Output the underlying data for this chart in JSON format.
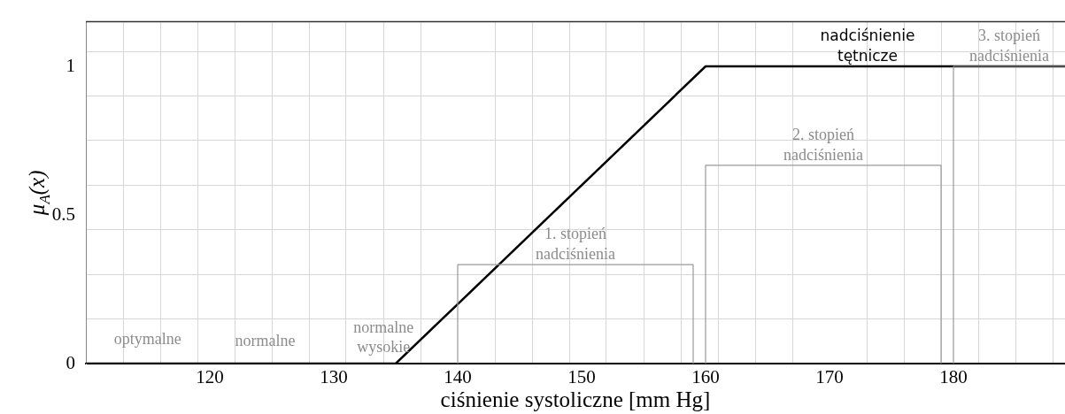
{
  "chart_data": {
    "type": "line",
    "xlabel": "ciśnienie systoliczne [mm Hg]",
    "ylabel": "μ$_{A}$(x)",
    "xlim": [
      110,
      189
    ],
    "ylim": [
      0,
      1.15
    ],
    "xticks": [
      {
        "value": 110,
        "label": null
      },
      {
        "value": 113,
        "label": null
      },
      {
        "value": 116,
        "label": null
      },
      {
        "value": 119,
        "label": null
      },
      120,
      {
        "value": 122,
        "label": null
      },
      {
        "value": 125,
        "label": null
      },
      {
        "value": 128,
        "label": null
      },
      130,
      {
        "value": 131,
        "label": null
      },
      {
        "value": 134,
        "label": null
      },
      {
        "value": 137,
        "label": null
      },
      140,
      {
        "value": 143,
        "label": null
      },
      {
        "value": 146,
        "label": null
      },
      {
        "value": 149,
        "label": null
      },
      150,
      {
        "value": 152,
        "label": null
      },
      {
        "value": 155,
        "label": null
      },
      {
        "value": 158,
        "label": null
      },
      160,
      {
        "value": 161,
        "label": null
      },
      {
        "value": 164,
        "label": null
      },
      {
        "value": 167,
        "label": null
      },
      170,
      {
        "value": 173,
        "label": null
      },
      {
        "value": 176,
        "label": null
      },
      {
        "value": 179,
        "label": null
      },
      180,
      {
        "value": 182,
        "label": null
      },
      {
        "value": 185,
        "label": null
      },
      {
        "value": 188,
        "label": null
      }
    ],
    "yticks": [
      0,
      {
        "value": 0.15,
        "label": null
      },
      {
        "value": 0.3,
        "label": null
      },
      {
        "value": 0.45,
        "label": null
      },
      0.5,
      {
        "value": 0.6,
        "label": null
      },
      {
        "value": 0.75,
        "label": null
      },
      {
        "value": 0.9,
        "label": null
      },
      1,
      {
        "value": 1.05,
        "label": null
      }
    ],
    "grid": true,
    "series": [
      {
        "name": "1. stopień\nnadciśnienia",
        "color": "#999999",
        "x": [
          140,
          140,
          159,
          159
        ],
        "values": [
          0,
          0.333,
          0.333,
          0
        ]
      },
      {
        "name": "2. stopień\nnadciśnienia",
        "color": "#999999",
        "x": [
          160,
          160,
          179,
          179
        ],
        "values": [
          0,
          0.667,
          0.667,
          0
        ]
      },
      {
        "name": "3. stopień\nnadciśnienia",
        "color": "#999999",
        "x": [
          180,
          180,
          189
        ],
        "values": [
          0,
          1,
          1
        ]
      },
      {
        "name": "nadciśnienie\ntętnicze",
        "color": "#000000",
        "x": [
          110,
          135,
          160,
          189
        ],
        "values": [
          0,
          0,
          1,
          1
        ]
      }
    ],
    "annotations": [
      "optymalne",
      "normalne",
      "normalne\nwysokie"
    ]
  }
}
